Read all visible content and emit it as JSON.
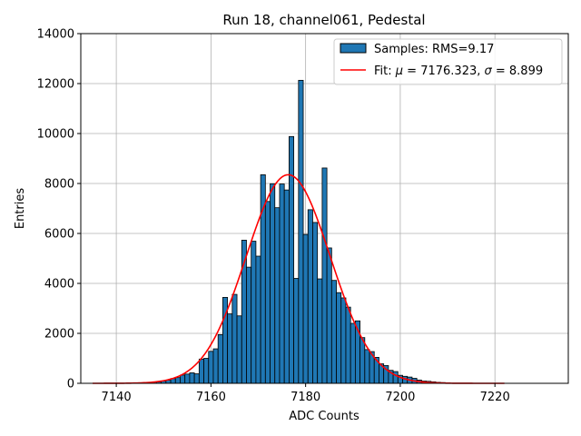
{
  "chart_data": {
    "type": "bar",
    "title": "Run 18, channel061, Pedestal",
    "xlabel": "ADC Counts",
    "ylabel": "Entries",
    "xlim": [
      7132.5,
      7235.5
    ],
    "ylim": [
      0,
      14000
    ],
    "xticks": [
      7140,
      7160,
      7180,
      7200,
      7220
    ],
    "yticks": [
      0,
      2000,
      4000,
      6000,
      8000,
      10000,
      12000,
      14000
    ],
    "grid": true,
    "legend_position": "top-right",
    "bin_width": 1,
    "colors": {
      "bars": "#1f77b4",
      "edge": "#000000",
      "fit": "#ff0000",
      "grid": "#b0b0b0"
    },
    "series": [
      {
        "name": "Samples: RMS=9.17",
        "kind": "histogram",
        "bin_centers": [
          7146,
          7147,
          7148,
          7149,
          7150,
          7151,
          7152,
          7153,
          7154,
          7155,
          7156,
          7157,
          7158,
          7159,
          7160,
          7161,
          7162,
          7163,
          7164,
          7165,
          7166,
          7167,
          7168,
          7169,
          7170,
          7171,
          7172,
          7173,
          7174,
          7175,
          7176,
          7177,
          7178,
          7179,
          7180,
          7181,
          7182,
          7183,
          7184,
          7185,
          7186,
          7187,
          7188,
          7189,
          7190,
          7191,
          7192,
          7193,
          7194,
          7195,
          7196,
          7197,
          7198,
          7199,
          7200,
          7201,
          7202,
          7203,
          7204,
          7205,
          7206,
          7207,
          7208,
          7209,
          7210
        ],
        "counts": [
          20,
          30,
          50,
          60,
          90,
          130,
          190,
          230,
          330,
          370,
          420,
          380,
          970,
          1000,
          1280,
          1380,
          1950,
          3440,
          2780,
          3560,
          2700,
          5730,
          4650,
          5690,
          5090,
          8350,
          7280,
          7990,
          7030,
          7980,
          7740,
          9880,
          4200,
          12130,
          5960,
          6950,
          6440,
          4180,
          8620,
          5420,
          4120,
          3630,
          3420,
          3050,
          2400,
          2500,
          1830,
          1350,
          1270,
          1040,
          780,
          710,
          520,
          470,
          320,
          280,
          250,
          200,
          130,
          90,
          80,
          60,
          40,
          30,
          20
        ]
      },
      {
        "name": "Fit: μ = 7176.323, σ = 8.899",
        "kind": "gaussian",
        "mu": 7176.323,
        "sigma": 8.899,
        "amplitude": 8350,
        "x_range": [
          7135,
          7222
        ]
      }
    ],
    "legend": [
      {
        "label_prefix": "Samples: RMS=9.17"
      },
      {
        "label_prefix": "Fit: ",
        "mu_symbol": "μ",
        "mu_text": " = 7176.323, ",
        "sigma_symbol": "σ",
        "sigma_text": " = 8.899"
      }
    ]
  }
}
